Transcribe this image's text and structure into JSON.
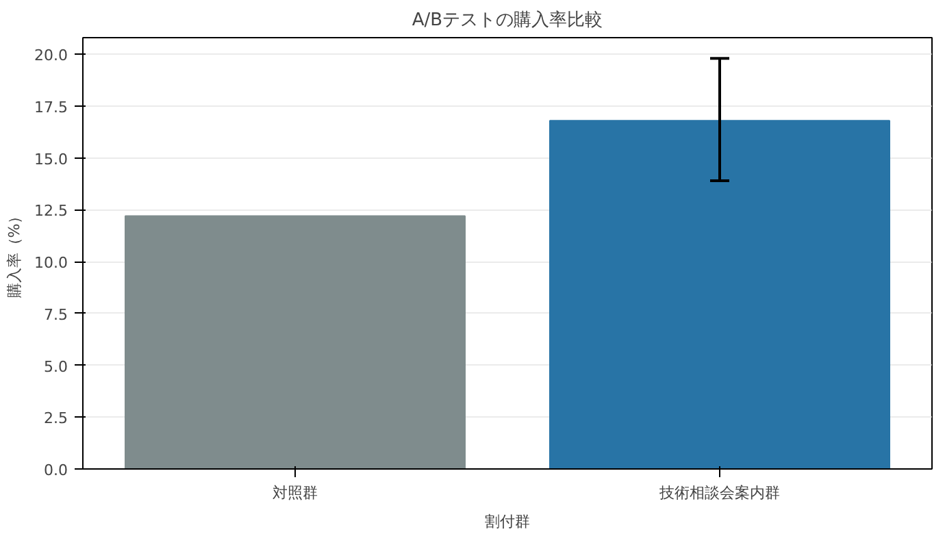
{
  "chart_data": {
    "type": "bar",
    "title": "A/Bテストの購入率比較",
    "xlabel": "割付群",
    "ylabel": "購入率（%）",
    "categories": [
      "対照群",
      "技術相談会案内群"
    ],
    "values": [
      12.2,
      16.8
    ],
    "colors": [
      "#7f8c8d",
      "#2874a6"
    ],
    "errors": [
      null,
      [
        13.9,
        19.8
      ]
    ],
    "ylim": [
      0,
      20.8
    ],
    "yticks": [
      {
        "value": 0,
        "label": "0.0"
      },
      {
        "value": 2.5,
        "label": "2.5"
      },
      {
        "value": 5,
        "label": "5.0"
      },
      {
        "value": 7.5,
        "label": "7.5"
      },
      {
        "value": 10,
        "label": "10.0"
      },
      {
        "value": 12.5,
        "label": "12.5"
      },
      {
        "value": 15,
        "label": "15.0"
      },
      {
        "value": 17.5,
        "label": "17.5"
      },
      {
        "value": 20,
        "label": "20.0"
      }
    ],
    "grid": "y"
  }
}
